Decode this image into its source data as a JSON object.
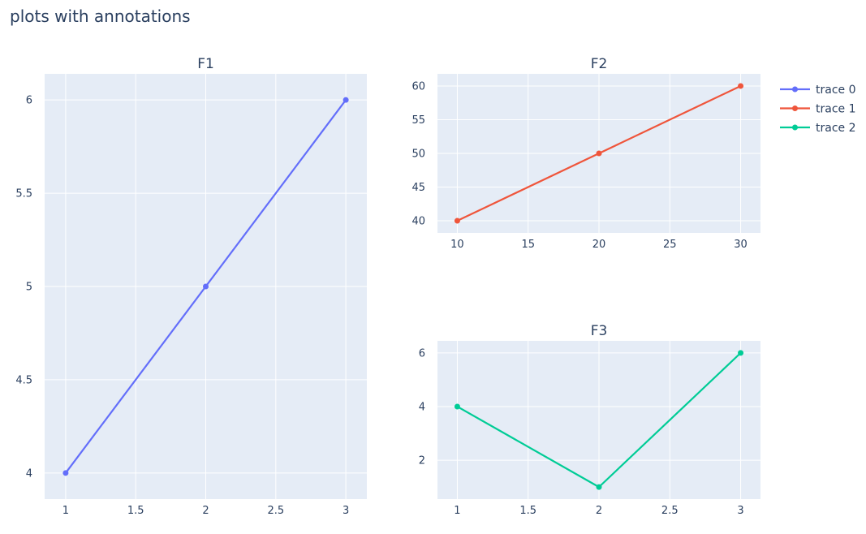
{
  "title": "plots with annotations",
  "colors": {
    "plot_bg": "#e5ecf6",
    "grid": "#ffffff",
    "text": "#2a3f5f"
  },
  "legend": {
    "placement": "top-right",
    "items": [
      {
        "name": "trace 0",
        "color": "#636efa"
      },
      {
        "name": "trace 1",
        "color": "#ef553b"
      },
      {
        "name": "trace 2",
        "color": "#00cc96"
      }
    ]
  },
  "chart_data": [
    {
      "type": "line",
      "title": "F1",
      "series": [
        {
          "name": "trace 0",
          "color": "#636efa",
          "x": [
            1,
            2,
            3
          ],
          "y": [
            4,
            5,
            6
          ]
        }
      ],
      "xlim": [
        0.85,
        3.15
      ],
      "ylim": [
        3.86,
        6.14
      ],
      "xticks": [
        1,
        1.5,
        2,
        2.5,
        3
      ],
      "yticks": [
        4,
        4.5,
        5,
        5.5,
        6
      ],
      "xlabel": "",
      "ylabel": "",
      "grid": true
    },
    {
      "type": "line",
      "title": "F2",
      "series": [
        {
          "name": "trace 1",
          "color": "#ef553b",
          "x": [
            10,
            20,
            30
          ],
          "y": [
            40,
            50,
            60
          ]
        }
      ],
      "xlim": [
        8.6,
        31.4
      ],
      "ylim": [
        38.2,
        61.8
      ],
      "xticks": [
        10,
        15,
        20,
        25,
        30
      ],
      "yticks": [
        40,
        45,
        50,
        55,
        60
      ],
      "xlabel": "",
      "ylabel": "",
      "grid": true
    },
    {
      "type": "line",
      "title": "F3",
      "series": [
        {
          "name": "trace 2",
          "color": "#00cc96",
          "x": [
            1,
            2,
            3
          ],
          "y": [
            4,
            1,
            6
          ]
        }
      ],
      "xlim": [
        0.86,
        3.14
      ],
      "ylim": [
        0.55,
        6.45
      ],
      "xticks": [
        1,
        1.5,
        2,
        2.5,
        3
      ],
      "yticks": [
        2,
        4,
        6
      ],
      "xlabel": "",
      "ylabel": "",
      "grid": true
    }
  ]
}
